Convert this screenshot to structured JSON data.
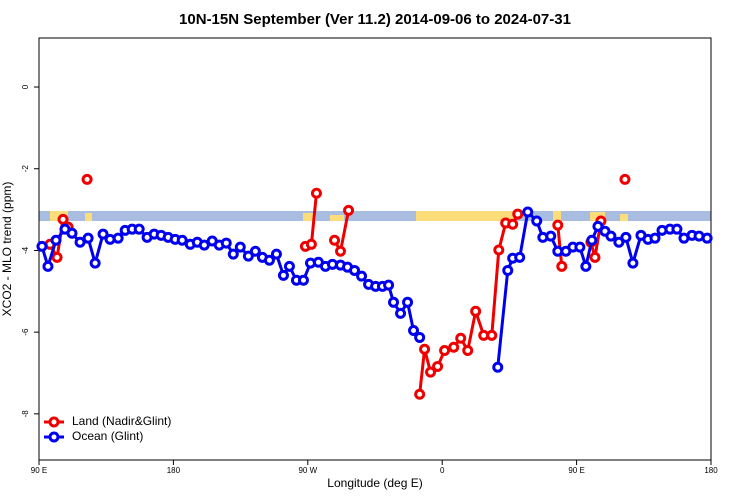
{
  "chart_data": {
    "type": "line",
    "title": "10N-15N September (Ver 11.2)   2014-09-06 to 2024-07-31",
    "xlabel": "Longitude (deg E)",
    "ylabel": "XCO2 - MLO trend (ppm)",
    "xlim": [
      90,
      540
    ],
    "ylim": [
      -9.13,
      1.2
    ],
    "xticks": [
      {
        "value": 90,
        "label": "90 E"
      },
      180,
      {
        "value": 270,
        "label": "90 W"
      },
      {
        "value": 360,
        "label": "0"
      },
      {
        "value": 450,
        "label": "90 E"
      },
      180
    ],
    "yticks": [
      0,
      -2,
      -4,
      -6,
      -8
    ],
    "legend": "bottom-left",
    "series": [
      {
        "name": "Land (Nadir&Glint)",
        "color": "#ee0000",
        "x": [
          97.4,
          102.1,
          106.1,
          109.5,
          null,
          122.2,
          null,
          268.4,
          272.4,
          275.8,
          null,
          287.9,
          291.9,
          297.3,
          null,
          344.9,
          348.2,
          352.2,
          356.9,
          361.6,
          367.7,
          372.4,
          377.1,
          382.4,
          387.8,
          393.2,
          397.9,
          402.5,
          407.2,
          410.6,
          null,
          437.4,
          440.1,
          null,
          459.6,
          462.3,
          466.3,
          null,
          482.4
        ],
        "values": [
          -3.85,
          -4.17,
          -3.24,
          -3.43,
          null,
          -2.26,
          null,
          -3.9,
          -3.85,
          -2.6,
          null,
          -3.75,
          -4.02,
          -3.02,
          null,
          -7.52,
          -6.42,
          -6.98,
          -6.84,
          -6.45,
          -6.37,
          -6.15,
          -6.45,
          -5.49,
          -6.08,
          -6.08,
          -3.99,
          -3.33,
          -3.36,
          -3.11,
          null,
          -3.38,
          -4.39,
          null,
          -3.8,
          -4.17,
          -3.28,
          null,
          -2.26
        ]
      },
      {
        "name": "Ocean (Glint)",
        "color": "#0000ee",
        "x": [
          92.0,
          96.0,
          101.4,
          107.4,
          112.1,
          117.5,
          122.9,
          127.6,
          132.9,
          137.6,
          143.0,
          147.7,
          152.4,
          157.1,
          162.4,
          167.1,
          171.8,
          176.5,
          181.2,
          185.9,
          191.3,
          196.0,
          200.7,
          206.0,
          210.7,
          215.4,
          220.1,
          224.8,
          230.2,
          234.9,
          239.6,
          244.3,
          249.0,
          253.7,
          257.7,
          262.4,
          267.1,
          271.8,
          277.1,
          281.8,
          286.5,
          291.9,
          296.6,
          301.3,
          306.0,
          310.7,
          315.4,
          320.0,
          324.1,
          327.4,
          332.1,
          336.8,
          340.8,
          344.9,
          null,
          397.2,
          403.9,
          407.2,
          411.9,
          417.3,
          423.3,
          427.4,
          432.7,
          437.4,
          442.8,
          447.5,
          452.2,
          456.2,
          460.2,
          464.3,
          469.0,
          473.0,
          478.3,
          483.0,
          487.7,
          493.1,
          497.8,
          502.5,
          507.2,
          512.5,
          517.2,
          521.9,
          527.3,
          532.0,
          537.4
        ],
        "values": [
          -3.9,
          -4.39,
          -3.75,
          -3.48,
          -3.58,
          -3.8,
          -3.7,
          -4.31,
          -3.6,
          -3.73,
          -3.7,
          -3.51,
          -3.48,
          -3.48,
          -3.68,
          -3.6,
          -3.63,
          -3.68,
          -3.73,
          -3.75,
          -3.85,
          -3.8,
          -3.87,
          -3.77,
          -3.87,
          -3.82,
          -4.09,
          -3.92,
          -4.14,
          -4.02,
          -4.17,
          -4.24,
          -4.09,
          -4.61,
          -4.39,
          -4.73,
          -4.73,
          -4.31,
          -4.29,
          -4.39,
          -4.34,
          -4.36,
          -4.41,
          -4.49,
          -4.63,
          -4.83,
          -4.88,
          -4.88,
          -4.85,
          -5.27,
          -5.54,
          -5.27,
          -5.96,
          -6.13,
          null,
          -6.86,
          -4.49,
          -4.19,
          -4.17,
          -3.06,
          -3.28,
          -3.68,
          -3.65,
          -4.02,
          -4.02,
          -3.92,
          -3.92,
          -4.39,
          -3.75,
          -3.41,
          -3.53,
          -3.65,
          -3.8,
          -3.68,
          -4.31,
          -3.63,
          -3.73,
          -3.7,
          -3.51,
          -3.48,
          -3.48,
          -3.7,
          -3.63,
          -3.65,
          -3.7
        ]
      }
    ]
  }
}
